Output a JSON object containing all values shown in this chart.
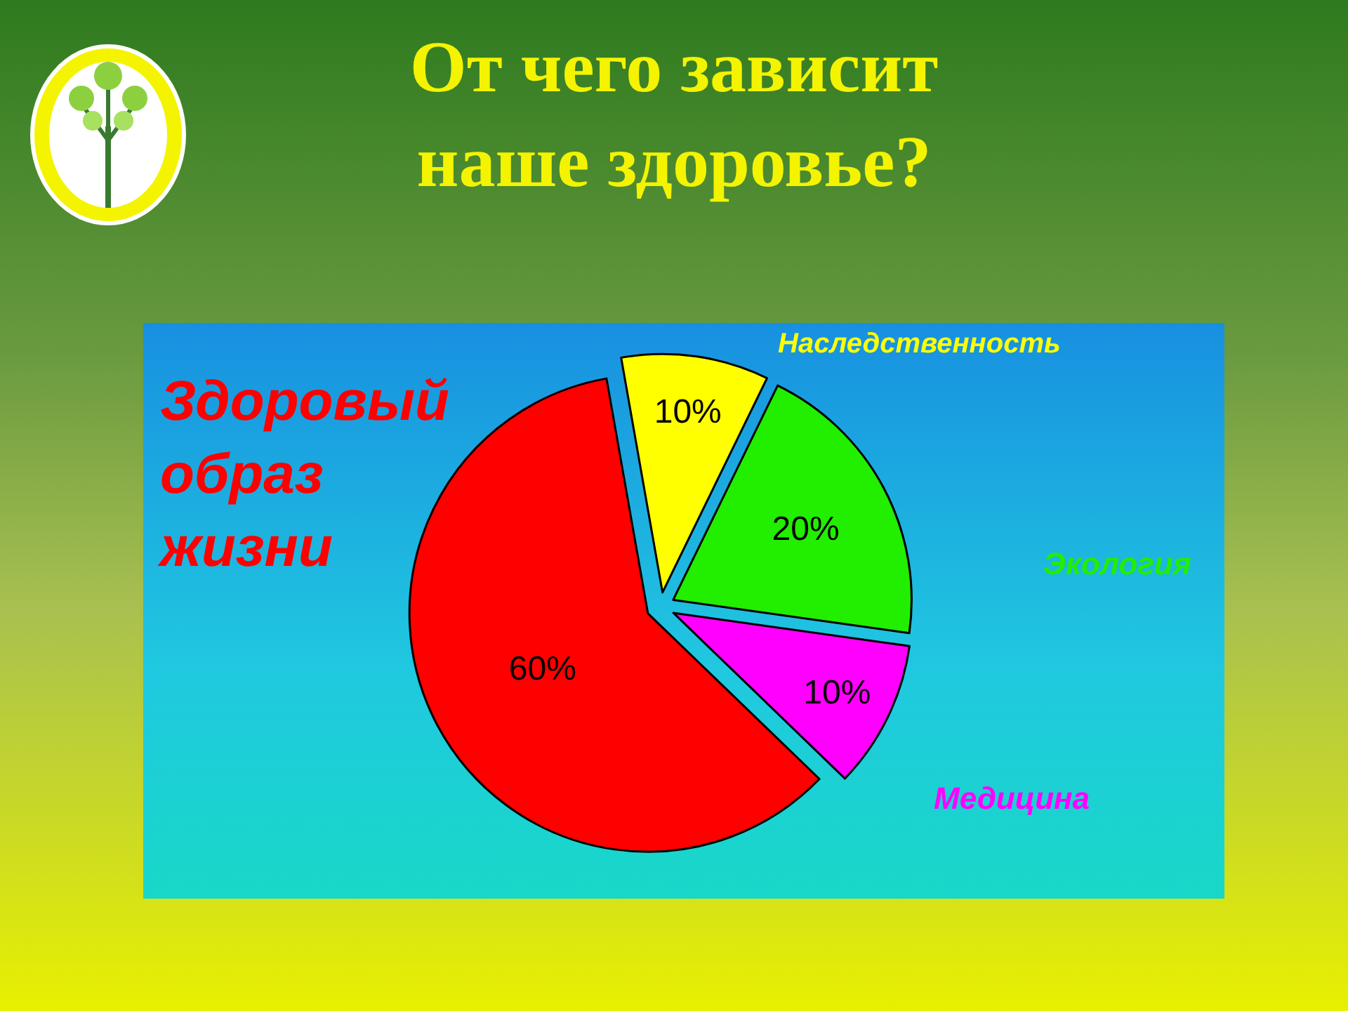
{
  "chart_data": {
    "type": "pie",
    "title": "От чего зависит наше здоровье?",
    "categories": [
      "Наследственность",
      "Экология",
      "Медицина",
      "Здоровый образ жизни"
    ],
    "values": [
      10,
      20,
      10,
      60
    ],
    "value_labels": [
      "10%",
      "20%",
      "10%",
      "60%"
    ],
    "colors": [
      "#ffff00",
      "#22ee00",
      "#ff00ff",
      "#ff0000"
    ],
    "legend": false
  }
}
